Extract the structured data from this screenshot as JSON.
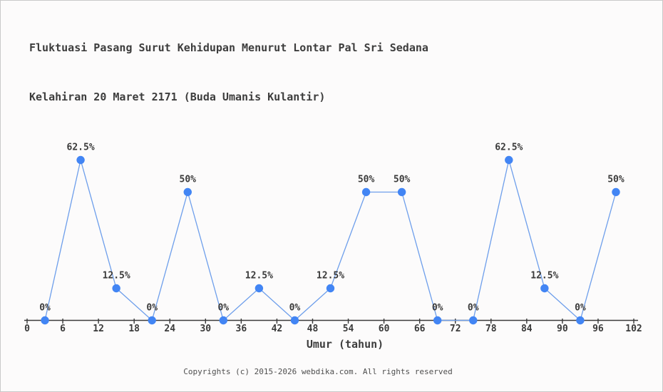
{
  "title": {
    "line1": "Fluktuasi Pasang Surut Kehidupan Menurut Lontar Pal Sri Sedana",
    "line2": "Kelahiran 20 Maret 2171 (Buda Umanis Kulantir)"
  },
  "chart_data": {
    "type": "line",
    "x": [
      3,
      9,
      15,
      21,
      27,
      33,
      39,
      45,
      51,
      57,
      63,
      69,
      75,
      81,
      87,
      93,
      99
    ],
    "values": [
      0,
      62.5,
      12.5,
      0,
      50,
      0,
      12.5,
      0,
      12.5,
      50,
      50,
      0,
      0,
      62.5,
      12.5,
      0,
      50
    ],
    "point_labels": [
      "0%",
      "62.5%",
      "12.5%",
      "0%",
      "50%",
      "0%",
      "12.5%",
      "0%",
      "12.5%",
      "50%",
      "50%",
      "0%",
      "0%",
      "62.5%",
      "12.5%",
      "0%",
      "50%"
    ],
    "x_ticks": [
      0,
      6,
      12,
      18,
      24,
      30,
      36,
      42,
      48,
      54,
      60,
      66,
      72,
      78,
      84,
      90,
      96,
      102
    ],
    "xlabel": "Umur (tahun)",
    "ylabel": "",
    "xlim": [
      0,
      102
    ],
    "ylim": [
      0,
      100
    ],
    "grid": false,
    "legend": false,
    "title": "Fluktuasi Pasang Surut Kehidupan Menurut Lontar Pal Sri Sedana Kelahiran 20 Maret 2171 (Buda Umanis Kulantir)",
    "colors": {
      "marker": "#4285f4",
      "line": "#6d9eeb",
      "axis": "#3a3a3a",
      "point_label_text": "#3a3a3a",
      "tick_label_text": "#3a3a3a"
    }
  },
  "footer": {
    "copyright": "Copyrights (c) 2015-2026 webdika.com. All rights reserved"
  }
}
